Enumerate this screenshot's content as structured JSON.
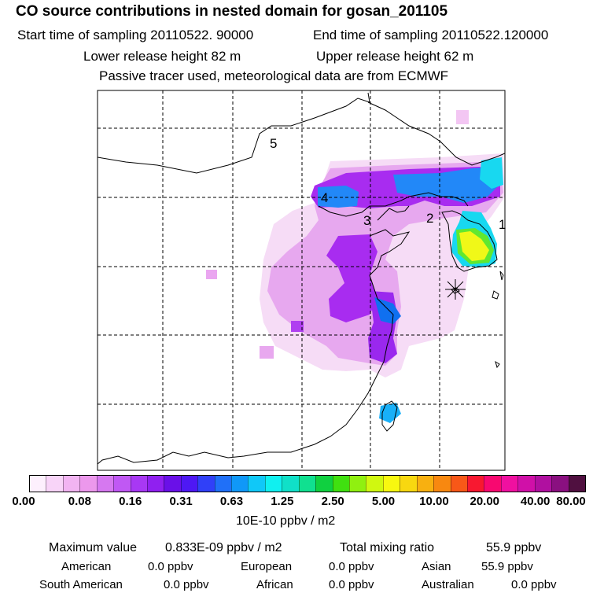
{
  "header": {
    "title": "CO  source contributions in nested domain for gosan_201105",
    "start_time": "Start time of sampling 20110522. 90000",
    "end_time": "End time of sampling 20110522.120000",
    "lower_release": "Lower release height   82 m",
    "upper_release": "Upper release height   62 m",
    "tracer_note": "Passive tracer used, meteorological data are from ECMWF"
  },
  "map": {
    "region_labels": [
      "5",
      "4",
      "3",
      "2",
      "1"
    ],
    "receptor_marker": "gosan-receptor-star"
  },
  "colorbar": {
    "colors": [
      "#fdf0fd",
      "#f8d4f8",
      "#f2b4f2",
      "#ec98ec",
      "#d678f0",
      "#c058f4",
      "#a838f4",
      "#9020f0",
      "#6a10e8",
      "#4e18f4",
      "#3040f8",
      "#2070f8",
      "#1098f8",
      "#10c8f8",
      "#10f0f0",
      "#10e0c8",
      "#10e090",
      "#10d040",
      "#40e010",
      "#90f010",
      "#d0f810",
      "#f8f810",
      "#f8d810",
      "#f8b010",
      "#f88810",
      "#f85818",
      "#f81830",
      "#f80870",
      "#f010a0",
      "#d010a8",
      "#b010a0",
      "#8a1080",
      "#501040"
    ],
    "ticks": [
      "0.00",
      "0.08",
      "0.16",
      "0.31",
      "0.63",
      "1.25",
      "2.50",
      "5.00",
      "10.00",
      "20.00",
      "40.00",
      "80.00"
    ],
    "units": "10E-10 ppbv / m2"
  },
  "summary": {
    "max_label": "Maximum value",
    "max_value": "0.833E-09 ppbv / m2",
    "total_label": "Total mixing ratio",
    "total_value": "55.9 ppbv"
  },
  "sources": [
    {
      "name": "American",
      "value": "0.0 ppbv"
    },
    {
      "name": "European",
      "value": "0.0 ppbv"
    },
    {
      "name": "Asian",
      "value": "55.9 ppbv"
    },
    {
      "name": "South American",
      "value": "0.0 ppbv"
    },
    {
      "name": "African",
      "value": "0.0 ppbv"
    },
    {
      "name": "Australian",
      "value": "0.0 ppbv"
    }
  ]
}
